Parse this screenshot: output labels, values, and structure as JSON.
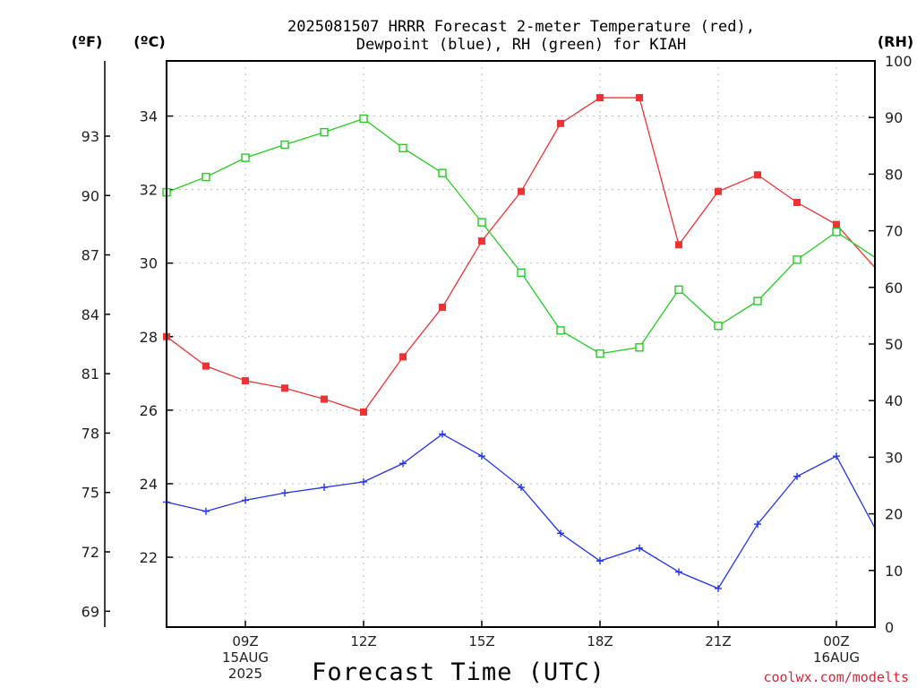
{
  "title_lines": [
    "2025081507 HRRR Forecast 2-meter Temperature (red),",
    "Dewpoint (blue), RH (green) for KIAH"
  ],
  "credit": "coolwx.com/modelts",
  "chart_data": {
    "type": "line",
    "xlabel": "Forecast Time (UTC)",
    "x": [
      "07Z",
      "08Z",
      "09Z",
      "10Z",
      "11Z",
      "12Z",
      "13Z",
      "14Z",
      "15Z",
      "16Z",
      "17Z",
      "18Z",
      "19Z",
      "20Z",
      "21Z",
      "22Z",
      "23Z",
      "00Z",
      "01Z"
    ],
    "x_ticks": [
      {
        "hour": "09Z",
        "lines": [
          "09Z",
          "15AUG",
          "2025"
        ]
      },
      {
        "hour": "12Z",
        "lines": [
          "12Z"
        ]
      },
      {
        "hour": "15Z",
        "lines": [
          "15Z"
        ]
      },
      {
        "hour": "18Z",
        "lines": [
          "18Z"
        ]
      },
      {
        "hour": "21Z",
        "lines": [
          "21Z"
        ]
      },
      {
        "hour": "00Z",
        "lines": [
          "00Z",
          "16AUG"
        ]
      }
    ],
    "axes": {
      "fahrenheit": {
        "label": "(ºF)",
        "range": [
          68.2,
          96.8
        ],
        "ticks": [
          69,
          72,
          75,
          78,
          81,
          84,
          87,
          90,
          93
        ]
      },
      "celsius": {
        "label": "(ºC)",
        "range": [
          20.1,
          35.5
        ],
        "ticks": [
          22,
          24,
          26,
          28,
          30,
          32,
          34
        ]
      },
      "rh": {
        "label": "(RH)",
        "range": [
          0,
          100
        ],
        "ticks": [
          0,
          10,
          20,
          30,
          40,
          50,
          60,
          70,
          80,
          90,
          100
        ]
      }
    },
    "grid": true,
    "series": [
      {
        "key": "temperature",
        "axis": "celsius",
        "color": "#ee3333",
        "marker": "filled-square",
        "values": [
          28.0,
          27.2,
          26.8,
          26.6,
          26.3,
          25.95,
          27.45,
          28.8,
          30.6,
          31.95,
          33.8,
          34.5,
          34.5,
          30.5,
          31.95,
          32.4,
          31.65,
          31.05,
          29.85
        ]
      },
      {
        "key": "dewpoint",
        "axis": "celsius",
        "color": "#2233ee",
        "marker": "plus",
        "values": [
          23.5,
          23.25,
          23.55,
          23.75,
          23.9,
          24.05,
          24.55,
          25.35,
          24.75,
          23.9,
          22.65,
          21.9,
          22.25,
          21.6,
          21.15,
          22.9,
          24.2,
          24.75,
          22.75
        ]
      },
      {
        "key": "rh",
        "axis": "rh",
        "color": "#22cc22",
        "marker": "open-square",
        "values": [
          76.8,
          79.5,
          82.9,
          85.2,
          87.4,
          89.8,
          84.6,
          80.2,
          71.5,
          62.6,
          52.4,
          48.3,
          49.4,
          59.6,
          53.2,
          57.6,
          64.9,
          69.8,
          65.2
        ]
      }
    ]
  }
}
